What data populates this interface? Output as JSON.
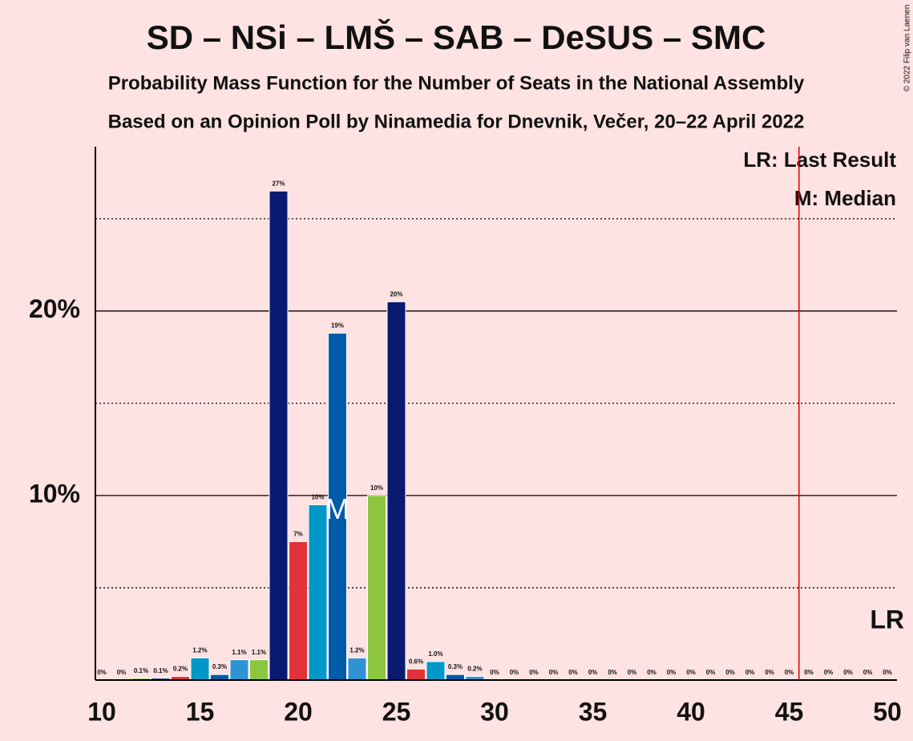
{
  "chart_data": {
    "type": "bar",
    "title": "SD – NSi – LMŠ – SAB – DeSUS – SMC",
    "subtitle": "Probability Mass Function for the Number of Seats in the National Assembly",
    "subtitle2": "Based on an Opinion Poll by Ninamedia for Dnevnik, Večer, 20–22 April 2022",
    "copyright": "© 2022 Filip van Laenen",
    "legend_lr": "LR: Last Result",
    "legend_median": "M: Median",
    "lr_label": "LR",
    "median_marker": "M",
    "median": 22,
    "last_result_line": 45.5,
    "categories": [
      10,
      11,
      12,
      13,
      14,
      15,
      16,
      17,
      18,
      19,
      20,
      21,
      22,
      23,
      24,
      25,
      26,
      27,
      28,
      29,
      30,
      31,
      32,
      33,
      34,
      35,
      36,
      37,
      38,
      39,
      40,
      41,
      42,
      43,
      44,
      45,
      46,
      47,
      48,
      49,
      50
    ],
    "values": [
      0,
      0,
      0.1,
      0.1,
      0.2,
      1.2,
      0.3,
      1.1,
      1.1,
      26.5,
      7.5,
      9.5,
      18.8,
      1.2,
      10.0,
      20.5,
      0.6,
      1.0,
      0.3,
      0.2,
      0,
      0,
      0,
      0,
      0,
      0,
      0,
      0,
      0,
      0,
      0,
      0,
      0,
      0,
      0,
      0,
      0,
      0,
      0,
      0,
      0
    ],
    "value_labels": [
      "0%",
      "0%",
      "0.1%",
      "0.1%",
      "0.2%",
      "1.2%",
      "0.3%",
      "1.1%",
      "1.1%",
      "27%",
      "7%",
      "10%",
      "19%",
      "1.2%",
      "10%",
      "20%",
      "0.6%",
      "1.0%",
      "0.3%",
      "0.2%",
      "0%",
      "0%",
      "0%",
      "0%",
      "0%",
      "0%",
      "0%",
      "0%",
      "0%",
      "0%",
      "0%",
      "0%",
      "0%",
      "0%",
      "0%",
      "0%",
      "0%",
      "0%",
      "0%",
      "0%",
      "0%"
    ],
    "colors": [
      "#005ba8",
      "#2e93d4",
      "#8cc63f",
      "#0a1a70",
      "#e3323a",
      "#0098c8",
      "#005ba8",
      "#2e93d4",
      "#8cc63f",
      "#0a1a70",
      "#e3323a",
      "#0098c8",
      "#005ba8",
      "#2e93d4",
      "#8cc63f",
      "#0a1a70",
      "#e3323a",
      "#0098c8",
      "#005ba8",
      "#2e93d4",
      "#8cc63f",
      "#0a1a70",
      "#e3323a",
      "#0098c8",
      "#005ba8",
      "#2e93d4",
      "#8cc63f",
      "#0a1a70",
      "#e3323a",
      "#0098c8",
      "#005ba8",
      "#2e93d4",
      "#8cc63f",
      "#0a1a70",
      "#e3323a",
      "#0098c8",
      "#005ba8",
      "#2e93d4",
      "#8cc63f",
      "#0a1a70",
      "#e3323a"
    ],
    "xlim": [
      10,
      50
    ],
    "xticks": [
      10,
      15,
      20,
      25,
      30,
      35,
      40,
      45,
      50
    ],
    "ylim": [
      0,
      28.9
    ],
    "yticks": [
      {
        "value": 10,
        "label": "10%"
      },
      {
        "value": 20,
        "label": "20%"
      }
    ],
    "minor_yticks": [
      5,
      15,
      25
    ],
    "lr_color": "#e00000"
  }
}
